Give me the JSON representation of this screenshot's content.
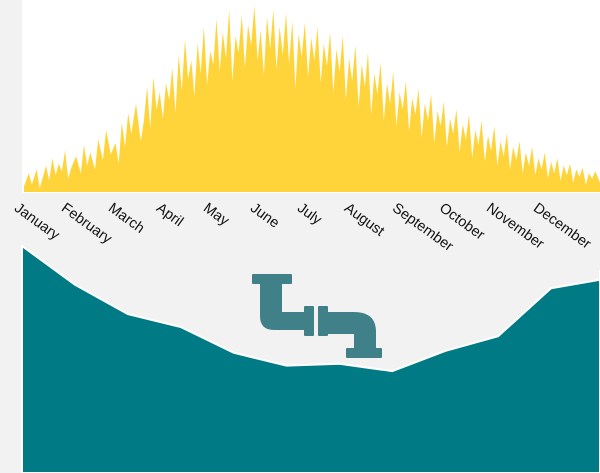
{
  "colors": {
    "solar_fill": "#ffd43b",
    "water_fill": "#007b85",
    "pipe_color": "#3f8089",
    "background": "#f2f2f2",
    "panel": "#ffffff"
  },
  "icon": "pipe-icon",
  "chart_data": [
    {
      "type": "area",
      "title": "",
      "xlabel": "",
      "ylabel": "",
      "x_domain": [
        0,
        365
      ],
      "ylim": [
        0,
        100
      ],
      "grid": false,
      "legend": "none",
      "series": [
        {
          "x": [
            0,
            3,
            5,
            8,
            10,
            12,
            14,
            16,
            18,
            20,
            22,
            24,
            26,
            28,
            30,
            33,
            36,
            38,
            40,
            42,
            45,
            47,
            50,
            52,
            55,
            58,
            60,
            62,
            64,
            66,
            68,
            71,
            74,
            76,
            78,
            80,
            82,
            84,
            86,
            88,
            90,
            92,
            94,
            96,
            98,
            100,
            102,
            104,
            106,
            108,
            110,
            112,
            114,
            116,
            118,
            120,
            122,
            124,
            126,
            128,
            130,
            132,
            134,
            136,
            138,
            140,
            142,
            144,
            146,
            148,
            150,
            152,
            154,
            156,
            158,
            160,
            162,
            164,
            166,
            168,
            170,
            172,
            174,
            176,
            178,
            180,
            182,
            184,
            186,
            188,
            190,
            192,
            194,
            196,
            198,
            200,
            202,
            204,
            206,
            208,
            210,
            212,
            214,
            216,
            218,
            220,
            222,
            224,
            226,
            228,
            230,
            232,
            234,
            236,
            238,
            240,
            242,
            244,
            246,
            248,
            250,
            252,
            254,
            256,
            258,
            260,
            262,
            264,
            266,
            268,
            270,
            272,
            274,
            276,
            278,
            280,
            282,
            284,
            286,
            288,
            290,
            292,
            294,
            296,
            298,
            300,
            302,
            304,
            306,
            308,
            310,
            312,
            314,
            316,
            318,
            320,
            322,
            324,
            326,
            328,
            330,
            332,
            334,
            336,
            338,
            340,
            342,
            344,
            346,
            348,
            350,
            352,
            354,
            356,
            358,
            360,
            362,
            365
          ],
          "y": [
            3,
            10,
            4,
            12,
            2,
            8,
            14,
            6,
            18,
            9,
            15,
            11,
            22,
            7,
            13,
            19,
            10,
            25,
            14,
            21,
            12,
            28,
            17,
            33,
            20,
            26,
            15,
            37,
            24,
            42,
            31,
            47,
            27,
            38,
            56,
            34,
            61,
            44,
            53,
            39,
            58,
            49,
            66,
            42,
            73,
            54,
            81,
            60,
            70,
            51,
            79,
            63,
            88,
            57,
            75,
            68,
            92,
            64,
            85,
            71,
            97,
            59,
            83,
            74,
            94,
            66,
            89,
            78,
            99,
            70,
            86,
            62,
            93,
            76,
            97,
            65,
            88,
            73,
            95,
            68,
            91,
            55,
            84,
            72,
            90,
            61,
            82,
            70,
            88,
            58,
            79,
            67,
            85,
            53,
            76,
            64,
            83,
            49,
            71,
            59,
            78,
            45,
            68,
            56,
            74,
            41,
            63,
            52,
            69,
            38,
            58,
            47,
            64,
            35,
            53,
            44,
            59,
            32,
            50,
            41,
            55,
            29,
            47,
            38,
            52,
            26,
            43,
            35,
            48,
            24,
            39,
            31,
            44,
            21,
            36,
            28,
            41,
            18,
            33,
            25,
            38,
            16,
            30,
            22,
            35,
            14,
            27,
            19,
            31,
            12,
            24,
            17,
            27,
            10,
            21,
            14,
            24,
            9,
            18,
            12,
            21,
            7,
            16,
            10,
            18,
            6,
            14,
            9,
            15,
            5,
            12,
            8,
            13,
            4,
            10,
            7,
            11,
            5
          ]
        }
      ]
    },
    {
      "type": "area",
      "title": "",
      "xlabel": "",
      "ylabel": "",
      "categories": [
        "January",
        "February",
        "March",
        "April",
        "May",
        "June",
        "July",
        "August",
        "September",
        "October",
        "November",
        "December"
      ],
      "ylim": [
        0,
        100
      ],
      "grid": false,
      "legend": "none",
      "series": [
        {
          "values": [
            100,
            79,
            63,
            56,
            42,
            35,
            36,
            32,
            43,
            51,
            77,
            82
          ]
        }
      ]
    }
  ]
}
